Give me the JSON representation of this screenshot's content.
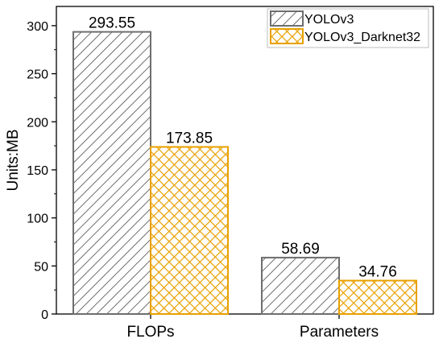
{
  "chart_data": {
    "type": "bar",
    "categories": [
      "FLOPs",
      "Parameters"
    ],
    "series": [
      {
        "name": "YOLOv3",
        "values": [
          293.55,
          58.69
        ],
        "color": "#7f7f7f",
        "pattern": "diagonal-hatch"
      },
      {
        "name": "YOLOv3_Darknet32",
        "values": [
          173.85,
          34.76
        ],
        "color": "#e8a000",
        "pattern": "crosshatch"
      }
    ],
    "data_labels": [
      [
        "293.55",
        "58.69"
      ],
      [
        "173.85",
        "34.76"
      ]
    ],
    "title": "",
    "xlabel": "",
    "ylabel": "Units:MB",
    "ylim": [
      0,
      320
    ],
    "yticks": [
      0,
      50,
      100,
      150,
      200,
      250,
      300
    ],
    "grid": false,
    "legend_position": "top-right"
  }
}
